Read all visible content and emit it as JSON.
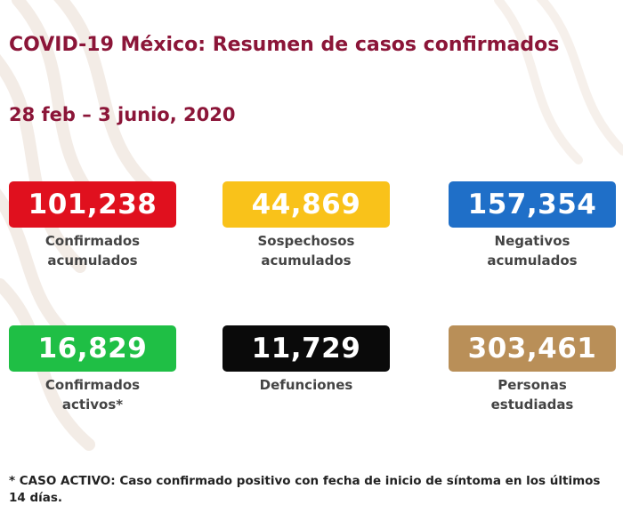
{
  "header": {
    "title": "COVID-19 México: Resumen de casos confirmados",
    "date_range": "28 feb – 3 junio, 2020"
  },
  "colors": {
    "red": "#e0101e",
    "yellow": "#f9c21a",
    "blue": "#1f6fc8",
    "green": "#1fbf45",
    "black": "#0a0a0a",
    "bronze": "#b98f58",
    "title": "#8b1538"
  },
  "stats": {
    "confirmados": {
      "value": "101,238",
      "line1": "Confirmados",
      "line2": "acumulados"
    },
    "sospechosos": {
      "value": "44,869",
      "line1": "Sospechosos",
      "line2": "acumulados"
    },
    "negativos": {
      "value": "157,354",
      "line1": "Negativos",
      "line2": "acumulados"
    },
    "activos": {
      "value": "16,829",
      "line1": "Confirmados",
      "line2": "activos*"
    },
    "defunciones": {
      "value": "11,729",
      "line1": "Defunciones"
    },
    "estudiadas": {
      "value": "303,461",
      "line1": "Personas",
      "line2": "estudiadas"
    }
  },
  "footnote": "* CASO ACTIVO: Caso confirmado positivo con fecha de inicio de síntoma en los últimos 14 días."
}
